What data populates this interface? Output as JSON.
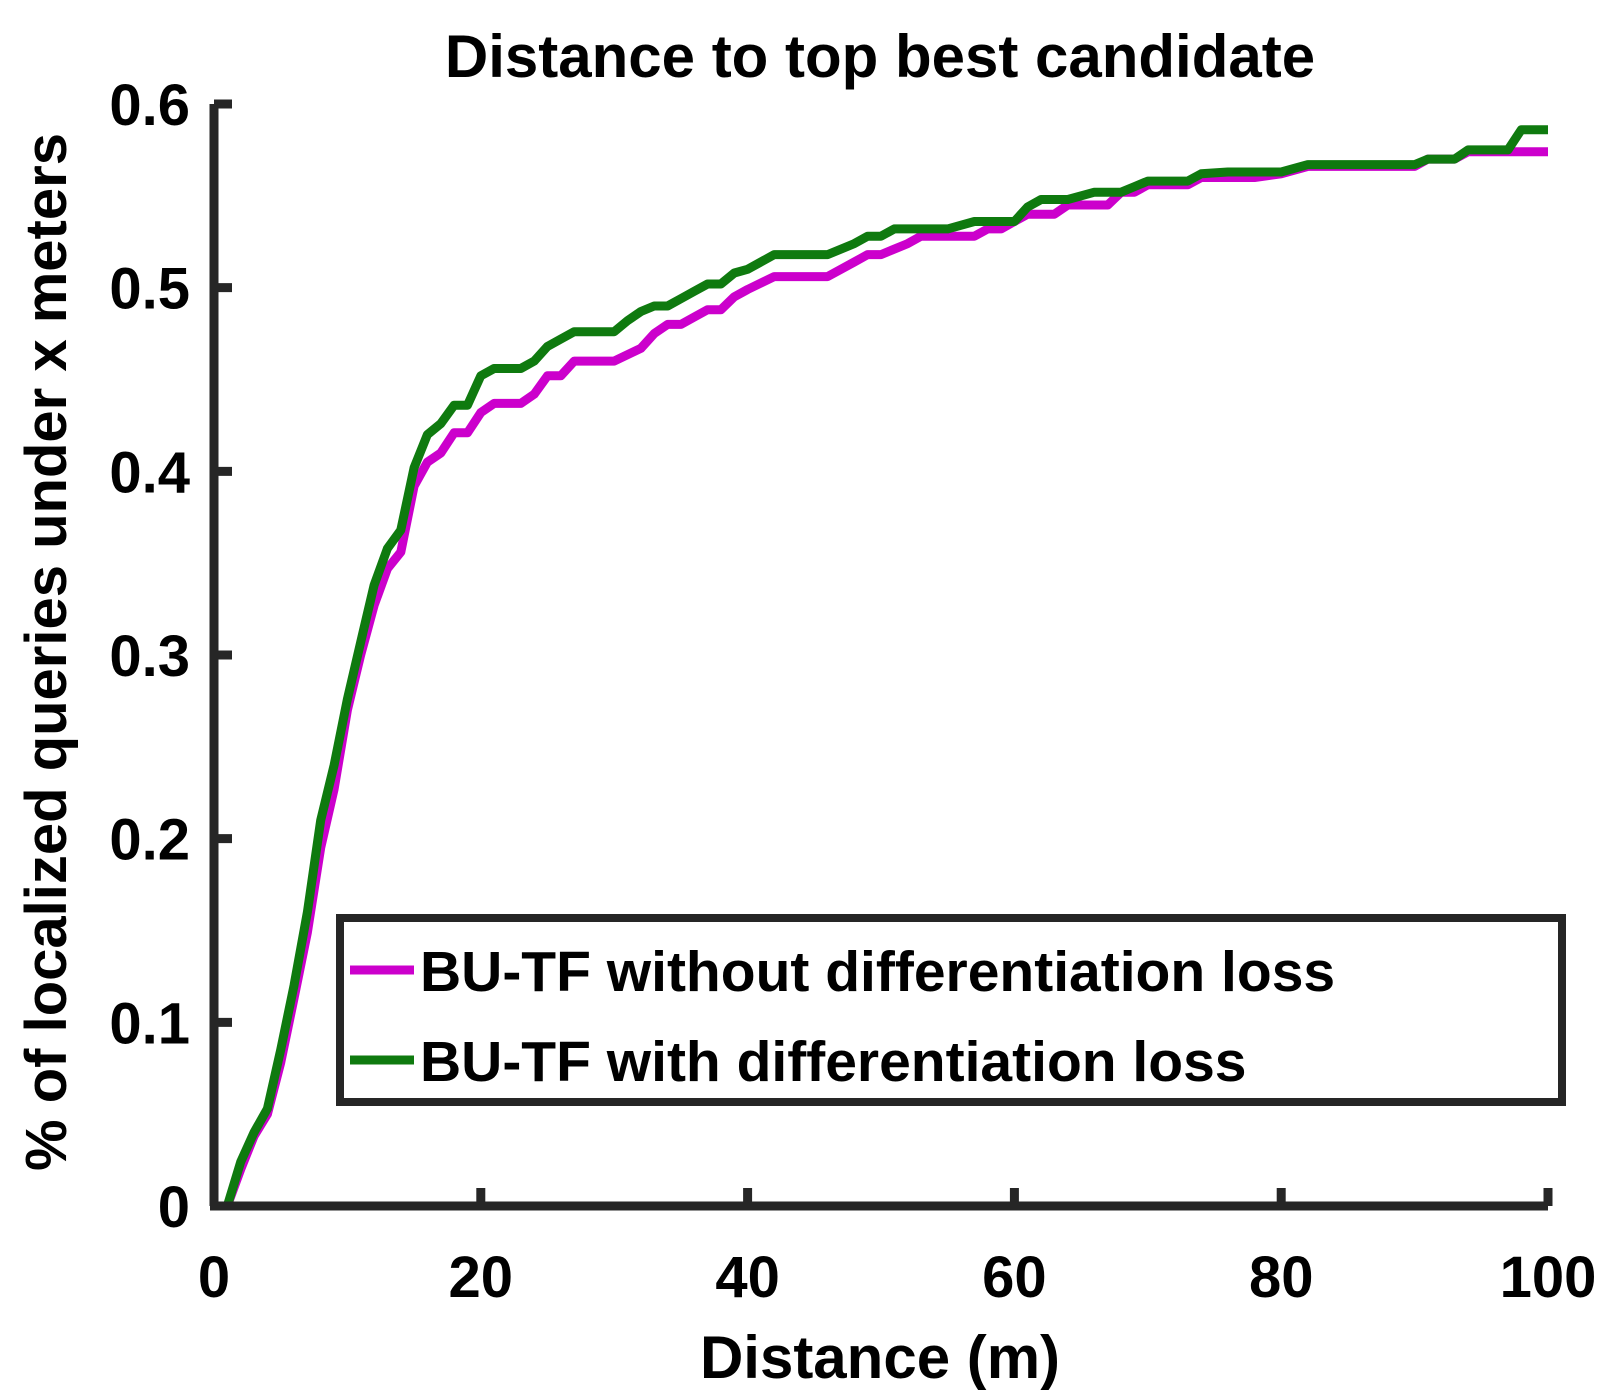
{
  "chart_data": {
    "type": "line",
    "title": "Distance to top best candidate",
    "xlabel": "Distance (m)",
    "ylabel": "% of localized queries under x meters",
    "xlim": [
      0,
      100
    ],
    "ylim": [
      0,
      0.6
    ],
    "xticks": [
      "0",
      "20",
      "40",
      "60",
      "80",
      "100"
    ],
    "yticks": [
      "0",
      "0.1",
      "0.2",
      "0.3",
      "0.4",
      "0.5",
      "0.6"
    ],
    "grid": false,
    "legend_position": "lower-right",
    "series": [
      {
        "name": "BU-TF without differentiation loss",
        "color": "#cc00cc",
        "x": [
          1,
          2,
          3,
          4,
          5,
          6,
          7,
          8,
          9,
          10,
          11,
          12,
          13,
          14,
          15,
          16,
          17,
          18,
          19,
          20,
          21,
          22,
          23,
          24,
          25,
          26,
          27,
          28,
          29,
          30,
          32,
          33,
          34,
          35,
          36,
          37,
          38,
          39,
          40,
          42,
          44,
          46,
          48,
          49,
          50,
          52,
          53,
          55,
          57,
          58,
          59,
          60,
          61,
          62,
          63,
          64,
          66,
          67,
          68,
          69,
          70,
          72,
          73,
          74,
          76,
          78,
          80,
          82,
          84,
          86,
          88,
          90,
          91,
          93,
          94,
          96,
          97,
          98,
          100
        ],
        "y": [
          0,
          0.02,
          0.038,
          0.05,
          0.078,
          0.113,
          0.149,
          0.195,
          0.227,
          0.27,
          0.3,
          0.327,
          0.347,
          0.356,
          0.392,
          0.405,
          0.41,
          0.421,
          0.421,
          0.432,
          0.437,
          0.437,
          0.437,
          0.442,
          0.452,
          0.452,
          0.46,
          0.46,
          0.46,
          0.46,
          0.467,
          0.475,
          0.48,
          0.48,
          0.484,
          0.488,
          0.488,
          0.495,
          0.499,
          0.506,
          0.506,
          0.506,
          0.514,
          0.518,
          0.518,
          0.524,
          0.528,
          0.528,
          0.528,
          0.532,
          0.532,
          0.536,
          0.54,
          0.54,
          0.54,
          0.545,
          0.545,
          0.545,
          0.552,
          0.552,
          0.556,
          0.556,
          0.556,
          0.56,
          0.56,
          0.56,
          0.562,
          0.566,
          0.566,
          0.566,
          0.566,
          0.566,
          0.57,
          0.57,
          0.574,
          0.574,
          0.574,
          0.574,
          0.574
        ]
      },
      {
        "name": "BU-TF with differentiation loss",
        "color": "#0f7a0f",
        "x": [
          1,
          2,
          3,
          4,
          5,
          6,
          7,
          8,
          9,
          10,
          11,
          12,
          13,
          14,
          15,
          16,
          17,
          18,
          19,
          20,
          21,
          22,
          23,
          24,
          25,
          26,
          27,
          28,
          29,
          30,
          31,
          32,
          33,
          34,
          35,
          36,
          37,
          38,
          39,
          40,
          42,
          44,
          46,
          48,
          49,
          50,
          51,
          52,
          53,
          55,
          57,
          59,
          60,
          61,
          62,
          63,
          64,
          66,
          67,
          68,
          69,
          70,
          72,
          73,
          74,
          76,
          78,
          80,
          82,
          84,
          86,
          88,
          90,
          91,
          93,
          94,
          96,
          97,
          98,
          100
        ],
        "y": [
          0,
          0.024,
          0.04,
          0.053,
          0.085,
          0.12,
          0.16,
          0.21,
          0.24,
          0.276,
          0.307,
          0.338,
          0.358,
          0.368,
          0.402,
          0.42,
          0.426,
          0.436,
          0.436,
          0.452,
          0.456,
          0.456,
          0.456,
          0.46,
          0.468,
          0.472,
          0.476,
          0.476,
          0.476,
          0.476,
          0.482,
          0.487,
          0.49,
          0.49,
          0.494,
          0.498,
          0.502,
          0.502,
          0.508,
          0.51,
          0.518,
          0.518,
          0.518,
          0.524,
          0.528,
          0.528,
          0.532,
          0.532,
          0.532,
          0.532,
          0.536,
          0.536,
          0.536,
          0.544,
          0.548,
          0.548,
          0.548,
          0.552,
          0.552,
          0.552,
          0.555,
          0.558,
          0.558,
          0.558,
          0.562,
          0.563,
          0.563,
          0.563,
          0.567,
          0.567,
          0.567,
          0.567,
          0.567,
          0.57,
          0.57,
          0.575,
          0.575,
          0.575,
          0.586,
          0.586
        ]
      }
    ]
  }
}
